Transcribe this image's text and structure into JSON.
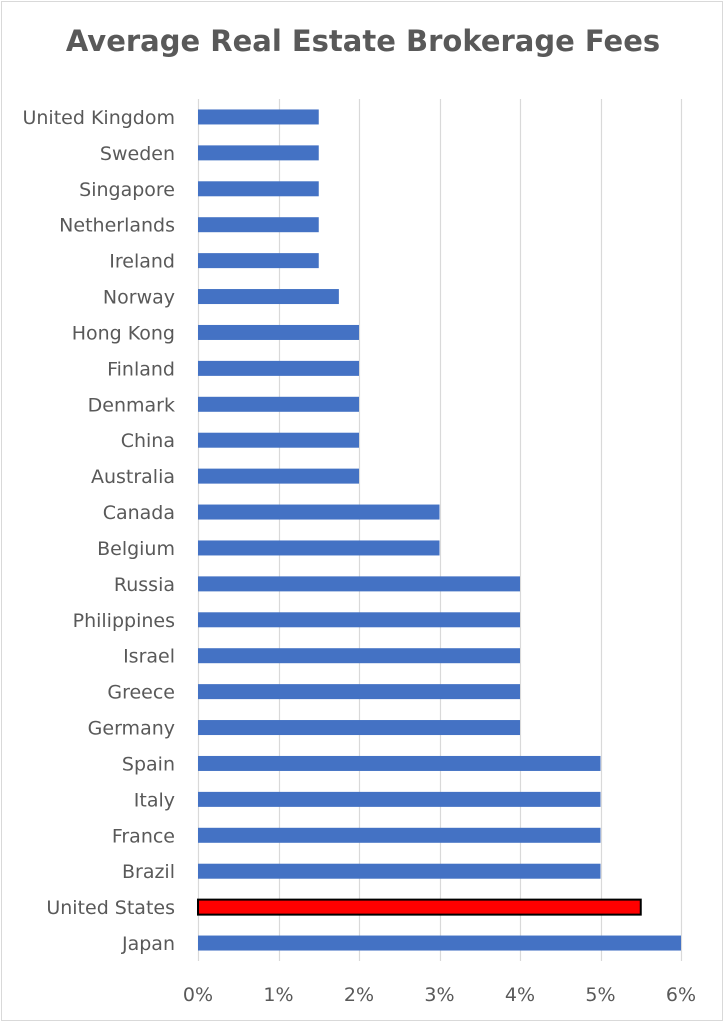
{
  "chart_data": {
    "type": "bar",
    "orientation": "horizontal",
    "title": "Average Real Estate Brokerage Fees",
    "xlabel": "",
    "ylabel": "",
    "categories": [
      "United Kingdom",
      "Sweden",
      "Singapore",
      "Netherlands",
      "Ireland",
      "Norway",
      "Hong Kong",
      "Finland",
      "Denmark",
      "China",
      "Australia",
      "Canada",
      "Belgium",
      "Russia",
      "Philippines",
      "Israel",
      "Greece",
      "Germany",
      "Spain",
      "Italy",
      "France",
      "Brazil",
      "United States",
      "Japan"
    ],
    "values": [
      1.5,
      1.5,
      1.5,
      1.5,
      1.5,
      1.75,
      2,
      2,
      2,
      2,
      2,
      3,
      3,
      4,
      4,
      4,
      4,
      4,
      5,
      5,
      5,
      5,
      5.5,
      6
    ],
    "highlight": "United States",
    "xlim": [
      0,
      6
    ],
    "xticks": [
      "0%",
      "1%",
      "2%",
      "3%",
      "4%",
      "5%",
      "6%"
    ],
    "grid": "vertical",
    "colors": {
      "bar": "#4472c4",
      "highlight": "#ff0000",
      "highlight_border": "#000000",
      "grid": "#d9d9d9",
      "text": "#595959"
    }
  }
}
